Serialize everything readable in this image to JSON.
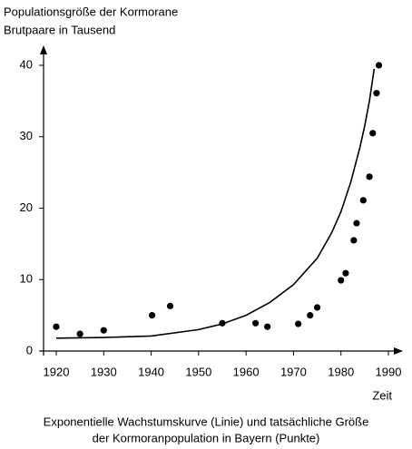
{
  "chart_data": {
    "type": "scatter",
    "title_lines": [
      "Populationsgröße der Kormorane",
      "Brutpaare in Tausend"
    ],
    "x_label": "Zeit",
    "caption_lines": [
      "Exponentielle Wachstumskurve (Linie) und tatsächliche Größe",
      "der Kormoranpopulation in Bayern (Punkte)"
    ],
    "color": "#000000",
    "points": {
      "x": [
        1920,
        1925,
        1930,
        1940.2,
        1944,
        1955,
        1962,
        1964.5,
        1971,
        1973.5,
        1975,
        1980,
        1981,
        1982.7,
        1983.3,
        1984.7,
        1986,
        1986.7,
        1987.5,
        1988
      ],
      "values": [
        3.4,
        2.4,
        2.9,
        5.0,
        6.3,
        3.9,
        3.9,
        3.4,
        3.8,
        5.0,
        6.1,
        9.9,
        10.9,
        15.5,
        17.9,
        21.1,
        24.4,
        30.5,
        36.1,
        40.0
      ]
    },
    "curve": {
      "x": [
        1920,
        1930,
        1940,
        1950,
        1955,
        1960,
        1965,
        1970,
        1975,
        1978,
        1980,
        1982,
        1984,
        1985,
        1986,
        1987
      ],
      "values": [
        1.8,
        1.9,
        2.1,
        3.0,
        3.8,
        5.0,
        6.8,
        9.3,
        13.0,
        16.5,
        19.5,
        23.5,
        28.5,
        31.5,
        35.0,
        39.5
      ]
    },
    "xlim": [
      1920,
      1990
    ],
    "ylim": [
      0,
      40
    ],
    "xticks": [
      1920,
      1930,
      1940,
      1950,
      1960,
      1970,
      1980,
      1990
    ],
    "yticks": [
      0,
      10,
      20,
      30,
      40
    ]
  }
}
